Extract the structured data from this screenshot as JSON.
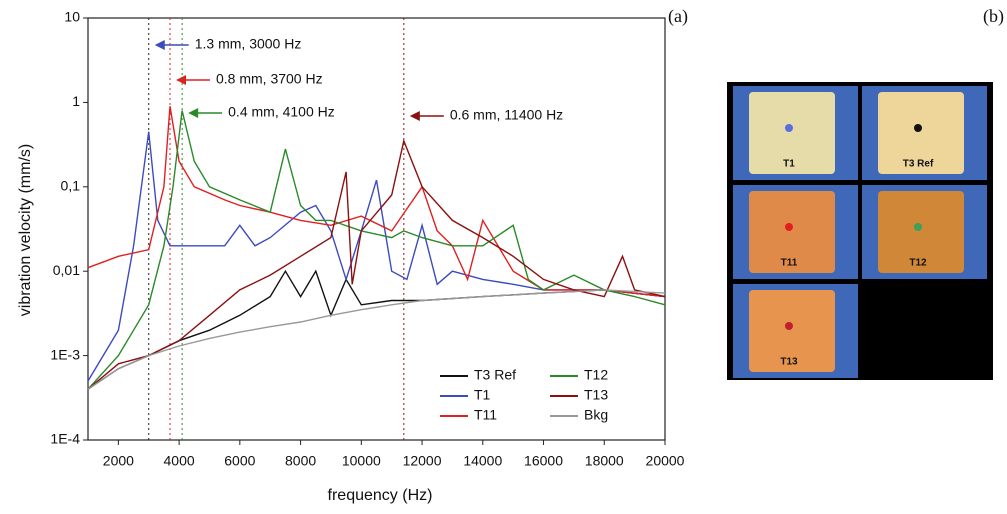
{
  "chart_data": {
    "type": "line",
    "x_label": "frequency (Hz)",
    "y_label": "vibration velocity (mm/s)",
    "log_y": true,
    "xlim": [
      1000,
      20000
    ],
    "xticks": [
      2000,
      4000,
      6000,
      8000,
      10000,
      12000,
      14000,
      16000,
      18000,
      20000
    ],
    "ylim": [
      0.0001,
      10
    ],
    "yticks": [
      {
        "value": 0.0001,
        "label": "1E-4"
      },
      {
        "value": 0.001,
        "label": "1E-3"
      },
      {
        "value": 0.01,
        "label": "0,01"
      },
      {
        "value": 0.1,
        "label": "0,1"
      },
      1,
      10
    ],
    "legend": "lower right",
    "series": [
      {
        "name": "T3 Ref",
        "color": "#111111",
        "x": [
          1000,
          2000,
          3000,
          4000,
          5000,
          6000,
          7000,
          7500,
          8000,
          8500,
          9000,
          9500,
          10000,
          11000,
          12000,
          14000,
          16000,
          18000,
          20000
        ],
        "values": [
          0.0004,
          0.0007,
          0.001,
          0.0015,
          0.002,
          0.003,
          0.005,
          0.01,
          0.005,
          0.01,
          0.003,
          0.008,
          0.004,
          0.0045,
          0.0045,
          0.005,
          0.0055,
          0.006,
          0.005
        ]
      },
      {
        "name": "T1",
        "color": "#3b4bc0",
        "x": [
          1000,
          2000,
          2500,
          3000,
          3300,
          3700,
          4500,
          5500,
          6000,
          6500,
          7000,
          8000,
          8500,
          9000,
          9500,
          10000,
          10500,
          11000,
          11500,
          12000,
          12500,
          13000,
          14000,
          15000,
          16000,
          18000,
          20000
        ],
        "values": [
          0.0005,
          0.002,
          0.02,
          0.45,
          0.04,
          0.02,
          0.02,
          0.02,
          0.035,
          0.02,
          0.025,
          0.05,
          0.06,
          0.03,
          0.008,
          0.03,
          0.12,
          0.01,
          0.008,
          0.035,
          0.007,
          0.01,
          0.008,
          0.007,
          0.006,
          0.006,
          0.005
        ]
      },
      {
        "name": "T11",
        "color": "#e02020",
        "x": [
          1000,
          2000,
          3000,
          3500,
          3700,
          4000,
          4500,
          5500,
          6000,
          7000,
          8000,
          9000,
          10000,
          11000,
          12000,
          12500,
          13000,
          13500,
          14000,
          15000,
          16000,
          18000,
          20000
        ],
        "values": [
          0.011,
          0.015,
          0.018,
          0.1,
          0.9,
          0.2,
          0.1,
          0.07,
          0.06,
          0.05,
          0.04,
          0.035,
          0.045,
          0.03,
          0.1,
          0.03,
          0.02,
          0.008,
          0.04,
          0.01,
          0.006,
          0.006,
          0.005
        ]
      },
      {
        "name": "T12",
        "color": "#2a8a2a",
        "x": [
          1000,
          2000,
          3000,
          3500,
          3800,
          4100,
          4500,
          5000,
          6000,
          7000,
          7500,
          8000,
          8500,
          9000,
          10000,
          11000,
          11400,
          12000,
          13000,
          14000,
          15000,
          15500,
          16000,
          17000,
          18000,
          19000,
          20000
        ],
        "values": [
          0.0004,
          0.001,
          0.004,
          0.02,
          0.1,
          0.8,
          0.2,
          0.1,
          0.07,
          0.05,
          0.28,
          0.06,
          0.04,
          0.04,
          0.03,
          0.025,
          0.03,
          0.025,
          0.02,
          0.02,
          0.035,
          0.008,
          0.006,
          0.009,
          0.006,
          0.005,
          0.004
        ]
      },
      {
        "name": "T13",
        "color": "#8b1010",
        "x": [
          1000,
          2000,
          3000,
          4000,
          5000,
          6000,
          7000,
          8000,
          9000,
          9500,
          9700,
          10000,
          11000,
          11400,
          12000,
          13000,
          14000,
          15000,
          16000,
          17000,
          18000,
          18600,
          19000,
          20000
        ],
        "values": [
          0.0004,
          0.0008,
          0.001,
          0.0015,
          0.003,
          0.006,
          0.009,
          0.015,
          0.025,
          0.15,
          0.007,
          0.03,
          0.08,
          0.35,
          0.1,
          0.04,
          0.025,
          0.015,
          0.008,
          0.006,
          0.005,
          0.015,
          0.006,
          0.005
        ]
      },
      {
        "name": "Bkg",
        "color": "#999999",
        "x": [
          1000,
          2000,
          3000,
          4000,
          5000,
          6000,
          7000,
          8000,
          9000,
          10000,
          11000,
          12000,
          14000,
          16000,
          18000,
          20000
        ],
        "values": [
          0.0004,
          0.0007,
          0.001,
          0.0013,
          0.0016,
          0.0019,
          0.0022,
          0.0025,
          0.003,
          0.0035,
          0.004,
          0.0045,
          0.005,
          0.0055,
          0.006,
          0.0055
        ]
      }
    ],
    "annotations": [
      {
        "text": "1.3 mm, 3000 Hz",
        "x": 3000,
        "color": "#3b4bc0",
        "line_color": "#222222"
      },
      {
        "text": "0.8 mm, 3700 Hz",
        "x": 3700,
        "color": "#e02020",
        "line_color": "#e02020"
      },
      {
        "text": "0.4 mm, 4100 Hz",
        "x": 4100,
        "color": "#2a8a2a",
        "line_color": "#2a8a2a"
      },
      {
        "text": "0.6 mm, 11400 Hz",
        "x": 11400,
        "color": "#8b1010",
        "line_color": "#8b1010"
      }
    ]
  },
  "figure": {
    "panel_labels": [
      "(a)",
      "(b)"
    ],
    "tiles": [
      {
        "label": "T1",
        "dot": "#5a6ee0"
      },
      {
        "label": "T3 Ref",
        "dot": "#111111"
      },
      {
        "label": "T11",
        "dot": "#e02020"
      },
      {
        "label": "T12",
        "dot": "#3aa05a"
      },
      {
        "label": "T13",
        "dot": "#c02030"
      }
    ]
  }
}
